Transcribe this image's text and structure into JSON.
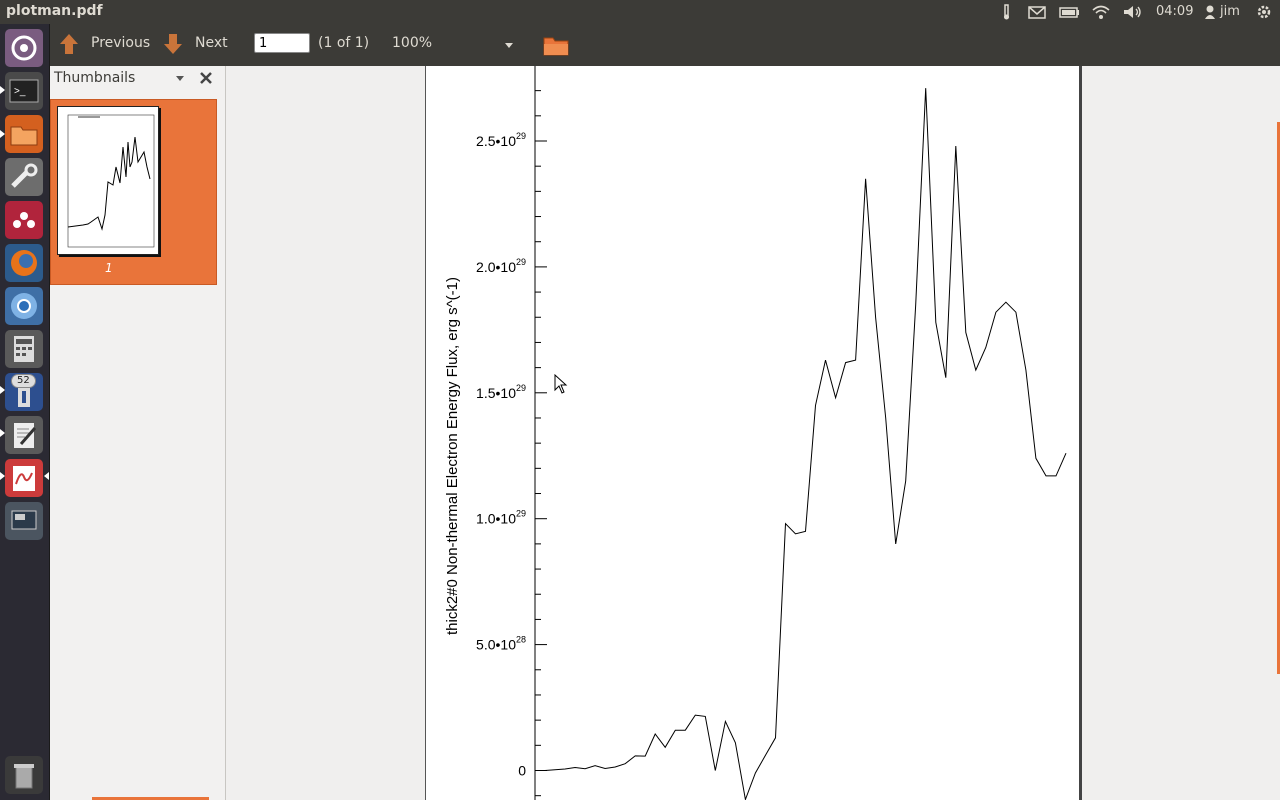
{
  "window": {
    "title": "plotman.pdf"
  },
  "panel": {
    "time": "04:09",
    "user": "jim"
  },
  "launcher": {
    "badge": "52",
    "items": [
      "dash",
      "terminal",
      "files",
      "system-settings",
      "mendeley",
      "firefox",
      "chromium",
      "calculator",
      "updates",
      "text-editor",
      "pdf-viewer",
      "workspace-switcher",
      "trash"
    ]
  },
  "toolbar": {
    "previous_label": "Previous",
    "next_label": "Next",
    "page_value": "1",
    "page_count": "(1 of 1)",
    "zoom": "100%"
  },
  "sidebar": {
    "title": "Thumbnails",
    "thumbnail_label": "1"
  },
  "chart_data": {
    "type": "line",
    "ylabel": "thick2#0 Non-thermal Electron Energy Flux, erg s^(-1)",
    "y_tick_labels": [
      {
        "mantissa": "0",
        "exp": ""
      },
      {
        "mantissa": "5.0•10",
        "exp": "28"
      },
      {
        "mantissa": "1.0•10",
        "exp": "29"
      },
      {
        "mantissa": "1.5•10",
        "exp": "29"
      },
      {
        "mantissa": "2.0•10",
        "exp": "29"
      },
      {
        "mantissa": "2.5•10",
        "exp": "29"
      }
    ],
    "y_tick_values": [
      0,
      5e+28,
      1e+29,
      1.5e+29,
      2e+29,
      2.5e+29
    ],
    "ylim_visible": [
      -1.1e+28,
      2.8e+29
    ],
    "y_values": [
      0,
      0,
      3e+26,
      6e+26,
      1.2e+27,
      7e+26,
      1.9e+27,
      8e+26,
      1.4e+27,
      2.7e+27,
      5.8e+27,
      5.7e+27,
      1.45e+28,
      9.2e+27,
      1.6e+28,
      1.6e+28,
      2.2e+28,
      2.15e+28,
      0,
      1.95e+28,
      1.1e+28,
      -1.15e+28,
      -1e+27,
      6e+27,
      1.3e+28,
      9.8e+28,
      9.4e+28,
      9.5e+28,
      1.45e+29,
      1.63e+29,
      1.48e+29,
      1.62e+29,
      1.63e+29,
      2.35e+29,
      1.8e+29,
      1.4e+29,
      9e+28,
      1.15e+29,
      1.85e+29,
      2.71e+29,
      1.78e+29,
      1.56e+29,
      2.48e+29,
      1.74e+29,
      1.59e+29,
      1.68e+29,
      1.82e+29,
      1.86e+29,
      1.82e+29,
      1.59e+29,
      1.24e+29,
      1.17e+29,
      1.17e+29,
      1.26e+29
    ]
  },
  "colors": {
    "accent": "#e9743a",
    "panel": "#3c3b37",
    "launcher": "#2b2a33"
  }
}
